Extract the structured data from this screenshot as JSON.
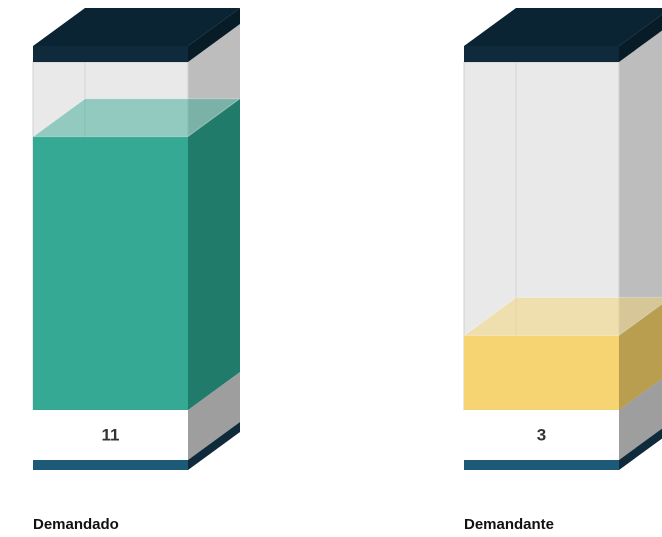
{
  "chart_data": {
    "type": "bar",
    "categories": [
      "Demandado",
      "Demandante"
    ],
    "values": [
      11,
      3
    ],
    "colors": [
      "#2ba58f",
      "#f7d36b"
    ],
    "ylim": [
      0,
      14
    ]
  }
}
